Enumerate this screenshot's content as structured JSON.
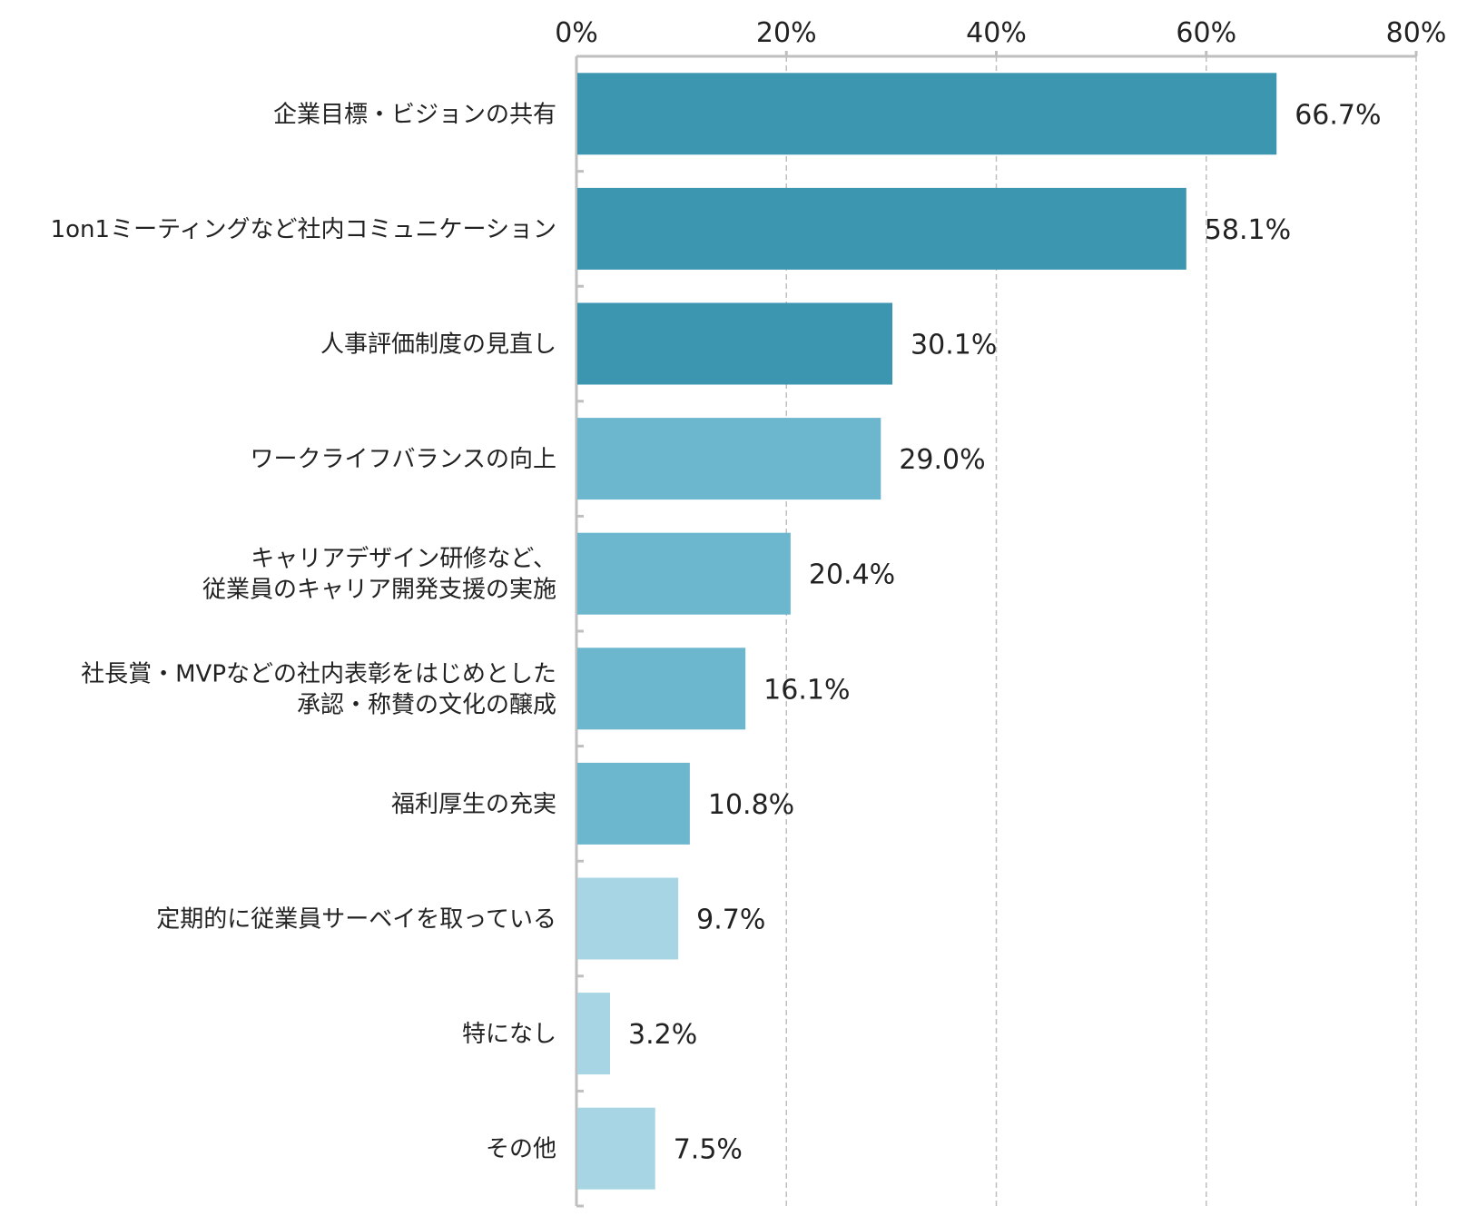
{
  "chart_data": {
    "type": "bar",
    "orientation": "horizontal",
    "title": "",
    "xlabel": "",
    "ylabel": "",
    "xlim": [
      0,
      80
    ],
    "ticks": [
      0,
      20,
      40,
      60,
      80
    ],
    "tick_labels": [
      "0%",
      "20%",
      "40%",
      "60%",
      "80%"
    ],
    "grid": "vertical dashed",
    "categories": [
      [
        "企業目標・ビジョンの共有"
      ],
      [
        "1on1ミーティングなど社内コミュニケーション"
      ],
      [
        "人事評価制度の見直し"
      ],
      [
        "ワークライフバランスの向上"
      ],
      [
        "キャリアデザイン研修など、",
        "従業員のキャリア開発支援の実施"
      ],
      [
        "社長賞・MVPなどの社内表彰をはじめとした",
        "承認・称賛の文化の醸成"
      ],
      [
        "福利厚生の充実"
      ],
      [
        "定期的に従業員サーベイを取っている"
      ],
      [
        "特になし"
      ],
      [
        "その他"
      ]
    ],
    "values": [
      66.7,
      58.1,
      30.1,
      29.0,
      20.4,
      16.1,
      10.8,
      9.7,
      3.2,
      7.5
    ],
    "value_labels": [
      "66.7%",
      "58.1%",
      "30.1%",
      "29.0%",
      "20.4%",
      "16.1%",
      "10.8%",
      "9.7%",
      "3.2%",
      "7.5%"
    ],
    "bar_colors": [
      "#3C96B0",
      "#3C96B0",
      "#3C96B0",
      "#6CB6CE",
      "#6CB6CE",
      "#6CB6CE",
      "#6CB6CE",
      "#A8D5E3",
      "#A8D5E3",
      "#A8D5E3"
    ],
    "axis_color": "#BFBFBF",
    "grid_color": "#BFBFBF"
  }
}
